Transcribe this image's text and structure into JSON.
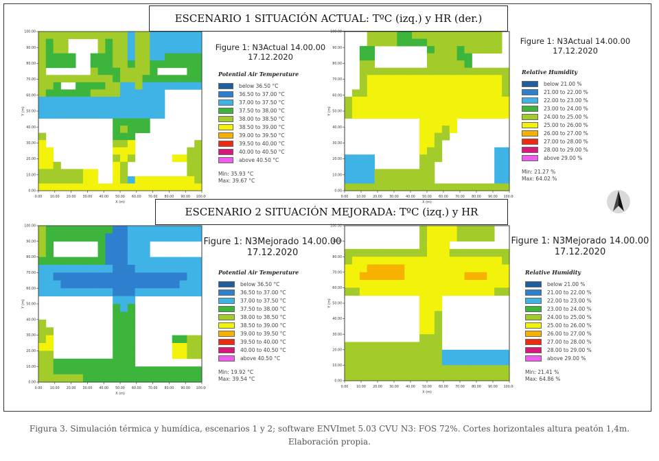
{
  "scenario1": {
    "title": "ESCENARIO 1 SITUACIÓN ACTUAL: TºC (izq.) y HR (der.)"
  },
  "scenario2": {
    "title": "ESCENARIO 2 SITUACIÓN MEJORADA: TºC (izq.) y HR"
  },
  "colors": {
    "white": "#ffffff",
    "c1": "#1f5f9e",
    "c2": "#2f7fcf",
    "c3": "#3fb3e6",
    "c4": "#3db53d",
    "c5": "#a3cc2a",
    "c6": "#f2f20a",
    "c7": "#f7b100",
    "c8": "#ee2a10",
    "c9": "#d8187a",
    "c10": "#f05cf0"
  },
  "chart_data": [
    {
      "id": "s1_temp",
      "type": "heatmap",
      "title": [
        "Figure 1: N3Actual 14.00.00",
        "17.12.2020"
      ],
      "legend_title": "Potential Air Temperature",
      "legend": [
        "below 36.50 °C",
        "36.50 to 37.00 °C",
        "37.00 to 37.50 °C",
        "37.50 to 38.00 °C",
        "38.00 to 38.50 °C",
        "38.50 to 39.00 °C",
        "39.00 to 39.50 °C",
        "39.50 to 40.00 °C",
        "40.00 to 40.50 °C",
        "above 40.50 °C"
      ],
      "min_label": "Min: 35.93 °C",
      "max_label": "Max: 39.67 °C",
      "xlabel": "X (m)",
      "ylabel": "Y (m)",
      "x_ticks": [
        "0.00",
        "10.00",
        "20.00",
        "30.00",
        "40.00",
        "50.00",
        "60.00",
        "70.00",
        "80.00",
        "90.00",
        "100.00"
      ],
      "y_ticks": [
        "100.00",
        "90.00",
        "80.00",
        "70.00",
        "60.00",
        "50.00",
        "40.00",
        "30.00",
        "20.00",
        "10.00",
        "0.00"
      ],
      "grid": [
        "5555555555553553333333",
        "5455000054553553333333",
        "5455000054553553333333",
        "5444400444553553344444",
        "5444400444554554444444",
        "5000000544455554000044",
        "5555555555455544444444",
        "5540044445533533333333",
        "5444444555533333300000",
        "3333333333333333300000",
        "3333333333333333300000",
        "3333333333333333300000",
        "0000000000444440000000",
        "0000000000454440000000",
        "5000000000444000000000",
        "6000000000556000000005",
        "6600000000666000000055",
        "6600000000565000006655",
        "6650000000650000000055",
        "5555556600650000000055",
        "5555556600653666666665",
        "6666666666666666666666"
      ]
    },
    {
      "id": "s1_hum",
      "type": "heatmap",
      "title": [
        "Figure 1: N3Actual 14.00.00",
        "17.12.2020"
      ],
      "legend_title": "Relative Humidity",
      "legend": [
        "below 21.00 %",
        "21.00 to 22.00 %",
        "22.00 to 23.00 %",
        "23.00 to 24.00 %",
        "24.00 to 25.00 %",
        "25.00 to 26.00 %",
        "26.00 to 27.00 %",
        "27.00 to 28.00 %",
        "28.00 to 29.00 %",
        "above 29.00 %"
      ],
      "min_label": "Min: 21.27 %",
      "max_label": "Max: 64.02 %",
      "xlabel": "X (m)",
      "ylabel": "Y (m)",
      "x_ticks": [
        "0.00",
        "10.00",
        "20.00",
        "30.00",
        "40.00",
        "50.00",
        "60.00",
        "70.00",
        "80.00",
        "90.00",
        "100.00"
      ],
      "y_ticks": [
        "100.00",
        "90.00",
        "80.00",
        "70.00",
        "60.00",
        "50.00",
        "40.00",
        "30.00",
        "20.00",
        "10.00",
        "0.00"
      ],
      "grid": [
        "0005555445555555555550",
        "0005555444455555555550",
        "0044000000045554555550",
        "0044000000055554400000",
        "0055000000055555400000",
        "0055555555555555555555",
        "0056666666666666666665",
        "0056666666666666666665",
        "0556666666666666666665",
        "5666666666666666666666",
        "5666666666666666666666",
        "5666666666666666666666",
        "0000000000666660000000",
        "0000000000666560000000",
        "0000000000665500000000",
        "0000000000665000000000",
        "0000000000655000000033",
        "3333000000555000000033",
        "3333000000550000000033",
        "3333555555550000000033",
        "3333555555550000000033",
        "5555555555555555555555"
      ]
    },
    {
      "id": "s2_temp",
      "type": "heatmap",
      "title": [
        "Figure 1: N3Mejorado 14.00.00",
        "17.12.2020"
      ],
      "legend_title": "Potential Air Temperature",
      "legend": [
        "below 36.50 °C",
        "36.50 to 37.00 °C",
        "37.00 to 37.50 °C",
        "37.50 to 38.00 °C",
        "38.00 to 38.50 °C",
        "38.50 to 39.00 °C",
        "39.00 to 39.50 °C",
        "39.50 to 40.00 °C",
        "40.00 to 40.50 °C",
        "above 40.50 °C"
      ],
      "min_label": "Min: 19.92 °C",
      "max_label": "Max: 39.54 °C",
      "xlabel": "X (m)",
      "ylabel": "Y (m)",
      "x_ticks": [
        "0.00",
        "10.00",
        "20.00",
        "30.00",
        "40.00",
        "50.00",
        "60.00",
        "70.00",
        "80.00",
        "90.00",
        "100.00"
      ],
      "y_ticks": [
        "100.00",
        "90.00",
        "80.00",
        "70.00",
        "60.00",
        "50.00",
        "40.00",
        "30.00",
        "20.00",
        "10.00",
        "0.00"
      ],
      "grid": [
        "5444444444223333333333",
        "5444444442223333333333",
        "5400000042223330000000",
        "5400000042223330000000",
        "4444444442223333333333",
        "3333333333222333333333",
        "3322222222222222222233",
        "3332222222222222222333",
        "3333333333222333333333",
        "0000000000333000000000",
        "0000000000434000000000",
        "0000000000444000000000",
        "5000000000444000000000",
        "5500000000444000000000",
        "5600000000444000004455",
        "6600000000444000006655",
        "5500000000444000006655",
        "5544444444444000000000",
        "5544444444444444444444",
        "5555554444444444444444"
      ]
    },
    {
      "id": "s2_hum",
      "type": "heatmap",
      "title": [
        "Figure 1: N3Mejorado 14.00.00",
        "17.12.2020"
      ],
      "legend_title": "Relative Humidity",
      "legend": [
        "below 21.00 %",
        "21.00 to 22.00 %",
        "22.00 to 23.00 %",
        "23.00 to 24.00 %",
        "24.00 to 25.00 %",
        "25.00 to 26.00 %",
        "26.00 to 27.00 %",
        "27.00 to 28.00 %",
        "28.00 to 29.00 %",
        "above 29.00 %"
      ],
      "min_label": "Min: 21.41 %",
      "max_label": "Max: 64.86 %",
      "xlabel": "X (m)",
      "ylabel": "Y (m)",
      "x_ticks": [
        "0.00",
        "10.00",
        "20.00",
        "30.00",
        "40.00",
        "50.00",
        "60.00",
        "70.00",
        "80.00",
        "90.00",
        "100.00"
      ],
      "y_ticks": [
        "100.00",
        "90.00",
        "80.00",
        "70.00",
        "60.00",
        "50.00",
        "40.00",
        "30.00",
        "20.00",
        "10.00",
        "0.00"
      ],
      "grid": [
        "0000000000566665555500",
        "0000000000566665555500",
        "0000000000566600000000",
        "5555555555566655555555",
        "5666666666666666666665",
        "6667777766666666666666",
        "6677777766666666777666",
        "6666666666666666666666",
        "5566666666666666666655",
        "0000000000666000000000",
        "0000000000666000000000",
        "0000000000665000000000",
        "0000000000665000000000",
        "0000000000665000000000",
        "0000000000555000000000",
        "5555555555555000000000",
        "5555555555555333333333",
        "5555555555555333333333",
        "5555555555555555555555",
        "5555555555555555555555"
      ]
    }
  ],
  "caption": "Figura 3. Simulación térmica y humídica, escenarios 1 y 2; software ENVImet 5.03 CVU N3: FOS 72%. Cortes horizontales altura peatón 1,4m. Elaboración propia."
}
